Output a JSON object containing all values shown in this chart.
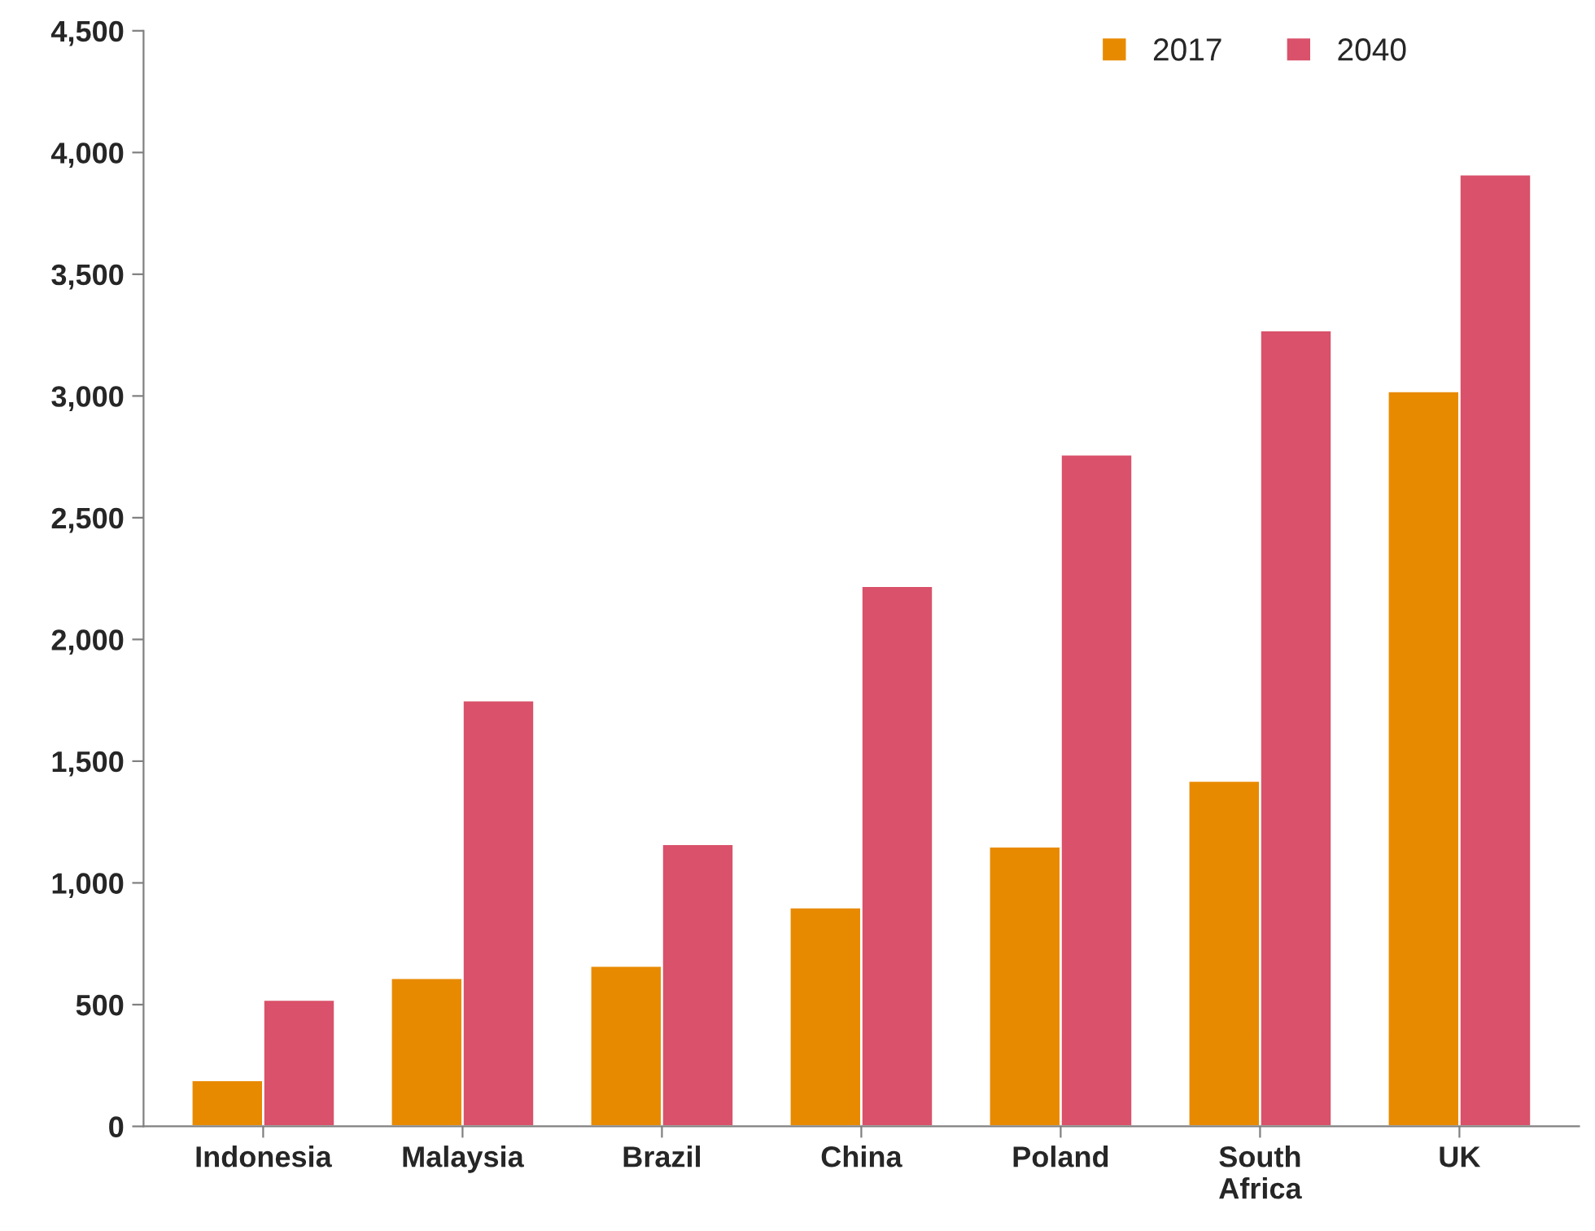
{
  "chart_data": {
    "type": "bar",
    "categories": [
      "Indonesia",
      "Malaysia",
      "Brazil",
      "China",
      "Poland",
      "South Africa",
      "UK"
    ],
    "series": [
      {
        "name": "2017",
        "color": "#e88a00",
        "values": [
          190,
          610,
          660,
          900,
          1150,
          1420,
          3020
        ]
      },
      {
        "name": "2040",
        "color": "#d9516a",
        "values": [
          520,
          1750,
          1160,
          2220,
          2760,
          3270,
          3910
        ]
      }
    ],
    "ylim": [
      0,
      4500
    ],
    "yticks": [
      {
        "value": 0,
        "label": "0"
      },
      {
        "value": 500,
        "label": "500"
      },
      {
        "value": 1000,
        "label": "1,000"
      },
      {
        "value": 1500,
        "label": "1,500"
      },
      {
        "value": 2000,
        "label": "2,000"
      },
      {
        "value": 2500,
        "label": "2,500"
      },
      {
        "value": 3000,
        "label": "3,000"
      },
      {
        "value": 3500,
        "label": "3,500"
      },
      {
        "value": 4000,
        "label": "4,000"
      },
      {
        "value": 4500,
        "label": "4,500"
      }
    ],
    "grid": false,
    "legend": "top right"
  }
}
